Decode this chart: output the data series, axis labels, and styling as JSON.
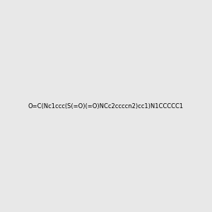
{
  "smiles": "O=C(Nc1ccc(S(=O)(=O)NCc2ccccn2)cc1)N1CCCCC1",
  "image_size": 300,
  "background_color": "#e8e8e8",
  "bond_color": "#1a1a1a",
  "atom_colors": {
    "N": "#0000ff",
    "O": "#ff0000",
    "S": "#cccc00",
    "H_on_N": "#008080"
  }
}
